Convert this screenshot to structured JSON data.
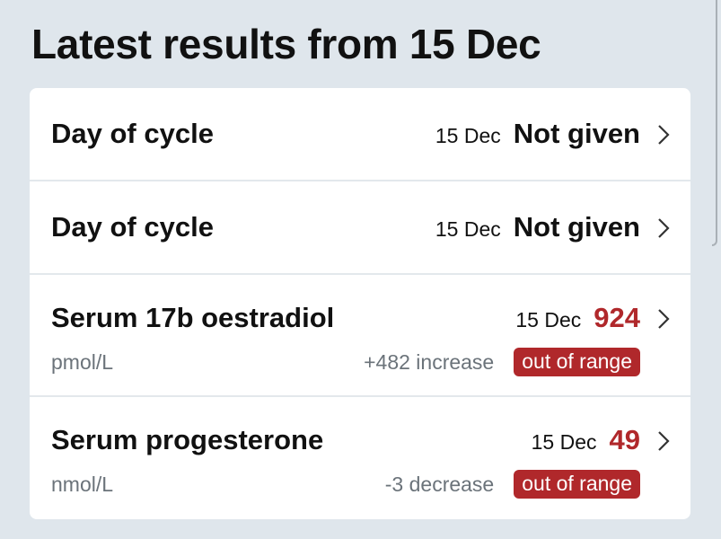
{
  "header": {
    "title": "Latest results from 15 Dec"
  },
  "results": [
    {
      "name": "Day of cycle",
      "date": "15 Dec",
      "value": "Not given"
    },
    {
      "name": "Day of cycle",
      "date": "15 Dec",
      "value": "Not given"
    },
    {
      "name": "Serum 17b oestradiol",
      "date": "15 Dec",
      "value": "924",
      "unit": "pmol/L",
      "change": "+482 increase",
      "status": "out of range"
    },
    {
      "name": "Serum progesterone",
      "date": "15 Dec",
      "value": "49",
      "unit": "nmol/L",
      "change": "-3 decrease",
      "status": "out of range"
    }
  ]
}
